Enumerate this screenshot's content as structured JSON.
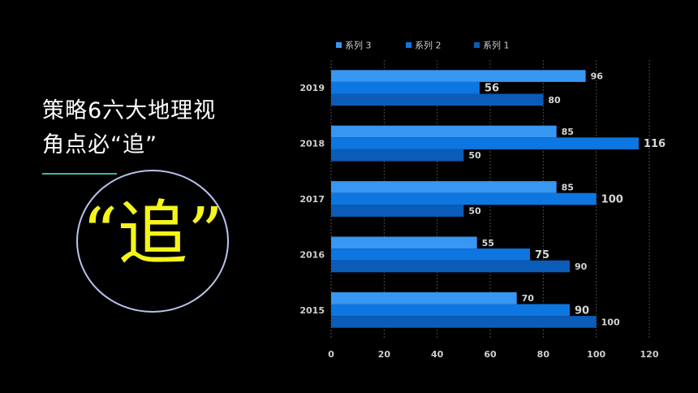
{
  "heading": {
    "line1": "策略6六大地理视",
    "line2": "角点必“追”"
  },
  "emblem_text": "“追”",
  "colors": {
    "background": "#000000",
    "emblem": "#f5f51a",
    "divider": "#3fb59a",
    "circle": "#b8c3ea",
    "series_1": "#0b5cb8",
    "series_2": "#0d76e0",
    "series_3": "#3797f2"
  },
  "chart_data": {
    "type": "bar",
    "orientation": "horizontal",
    "categories": [
      "2015",
      "2016",
      "2017",
      "2018",
      "2019"
    ],
    "series": [
      {
        "name": "系列 1",
        "values": [
          100,
          90,
          50,
          50,
          80
        ]
      },
      {
        "name": "系列 2",
        "values": [
          90,
          75,
          100,
          116,
          56
        ]
      },
      {
        "name": "系列 3",
        "values": [
          70,
          55,
          85,
          85,
          96
        ]
      }
    ],
    "legend_order": [
      "系列 3",
      "系列 2",
      "系列 1"
    ],
    "x_ticks": [
      "0",
      "20",
      "40",
      "60",
      "80",
      "100",
      "120"
    ],
    "xlim": [
      0,
      120
    ],
    "grid": "vertical dashed",
    "legend_position": "top"
  }
}
